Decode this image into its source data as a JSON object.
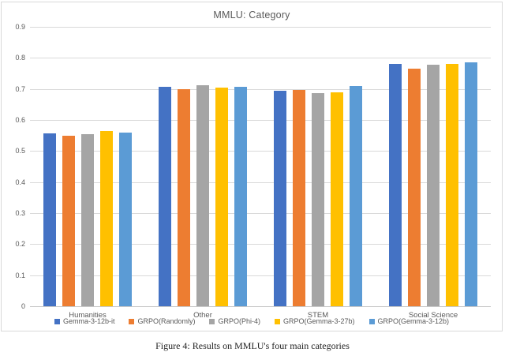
{
  "figure": {
    "caption": "Figure 4: Results on MMLU's four main categories"
  },
  "chart_data": {
    "type": "bar",
    "title": "MMLU: Category",
    "categories": [
      "Humanities",
      "Other",
      "STEM",
      "Social Science"
    ],
    "series": [
      {
        "name": "Gemma-3-12b-it",
        "color": "#4472C4",
        "values": [
          0.556,
          0.706,
          0.695,
          0.78
        ]
      },
      {
        "name": "GRPO(Randomly)",
        "color": "#ED7D31",
        "values": [
          0.55,
          0.7,
          0.697,
          0.766
        ]
      },
      {
        "name": "GRPO(Phi-4)",
        "color": "#A5A5A5",
        "values": [
          0.554,
          0.712,
          0.687,
          0.777
        ]
      },
      {
        "name": "GRPO(Gemma-3-27b)",
        "color": "#FFC000",
        "values": [
          0.565,
          0.704,
          0.688,
          0.78
        ]
      },
      {
        "name": "GRPO(Gemma-3-12b)",
        "color": "#5B9BD5",
        "values": [
          0.56,
          0.707,
          0.71,
          0.786
        ]
      }
    ],
    "ylim": [
      0,
      0.9
    ],
    "ytick_step": 0.1,
    "yticks": [
      "0",
      "0.1",
      "0.2",
      "0.3",
      "0.4",
      "0.5",
      "0.6",
      "0.7",
      "0.8",
      "0.9"
    ],
    "grid": true,
    "legend_position": "bottom",
    "text_color": "#595959",
    "gridline_color": "#d9d9d9"
  }
}
